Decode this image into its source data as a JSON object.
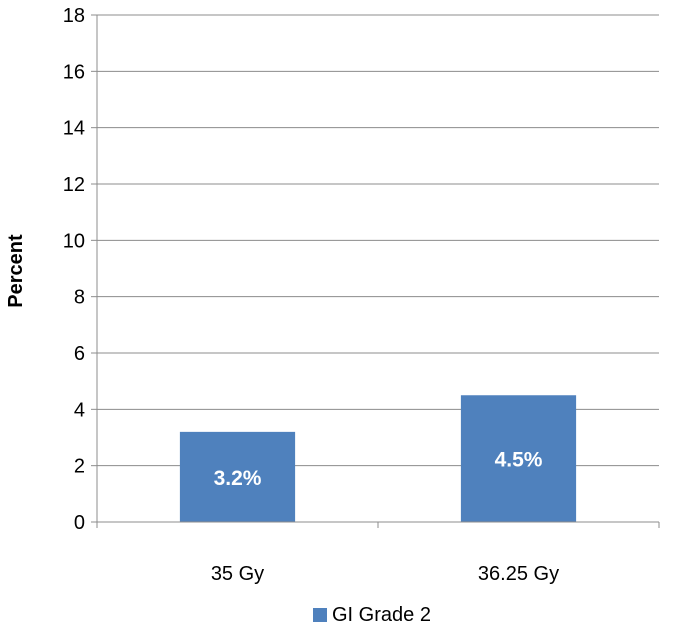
{
  "chart_data": {
    "type": "bar",
    "categories": [
      "35 Gy",
      "36.25 Gy"
    ],
    "series": [
      {
        "name": "GI Grade 2",
        "values": [
          3.2,
          4.5
        ],
        "data_labels": [
          "3.2%",
          "4.5%"
        ],
        "color": "#4F81BD"
      }
    ],
    "ylabel": "Percent",
    "xlabel": "",
    "ylim": [
      0,
      18
    ],
    "yticks": [
      0,
      2,
      4,
      6,
      8,
      10,
      12,
      14,
      16,
      18
    ],
    "grid": true,
    "legend": "bottom"
  }
}
